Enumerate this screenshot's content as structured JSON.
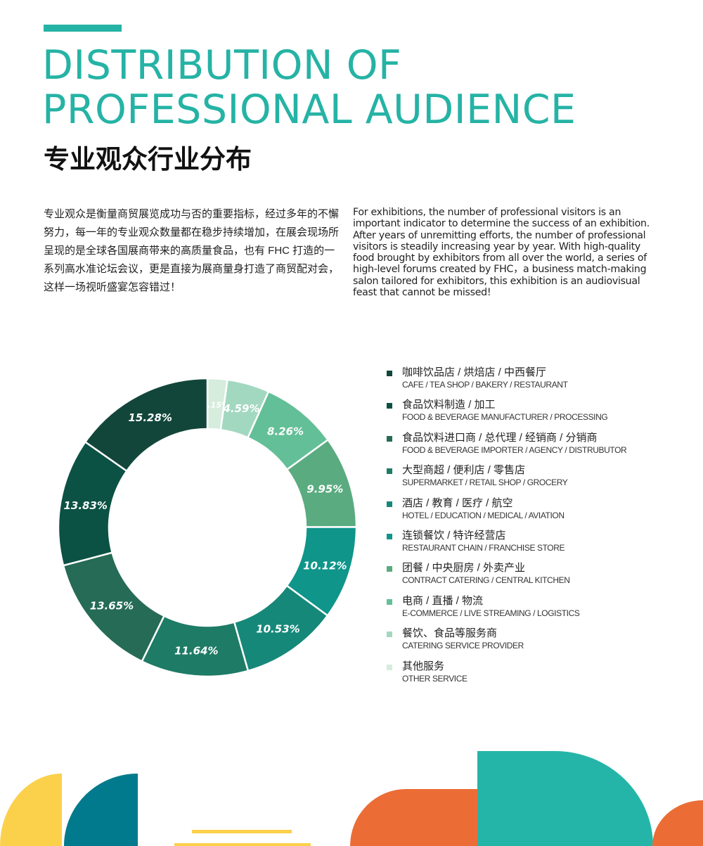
{
  "header": {
    "title_lines": [
      "DISTRIBUTION OF",
      "PROFESSIONAL AUDIENCE"
    ],
    "subtitle_cn": "专业观众行业分布",
    "accent_color": "#25b3a5"
  },
  "intro": {
    "cn": "专业观众是衡量商贸展览成功与否的重要指标，经过多年的不懈努力，每一年的专业观众数量都在稳步持续增加，在展会现场所呈现的是全球各国展商带来的高质量食品，也有 FHC 打造的一系列高水准论坛会议，更是直接为展商量身打造了商贸配对会，这样一场视听盛宴怎容错过！",
    "en": "For exhibitions, the number of professional visitors is an important indicator to determine the success of an exhibition. After years of unremitting efforts, the number of professional visitors is steadily increasing year by year. With high-quality food brought by exhibitors from all over the world, a series of high-level forums created by FHC，a business match-making salon tailored for exhibitors, this exhibition is an audiovisual feast that cannot be missed!"
  },
  "chart_data": {
    "type": "pie",
    "donut": true,
    "unit": "%",
    "legend_position": "right",
    "categories": [
      {
        "cn": "咖啡饮品店 / 烘焙店 / 中西餐厅",
        "en": "CAFE / TEA SHOP / BAKERY / RESTAURANT",
        "value": 15.28,
        "label": "15.28%",
        "color": "#12463a"
      },
      {
        "cn": "食品饮料制造 / 加工",
        "en": "FOOD & BEVERAGE MANUFACTURER / PROCESSING",
        "value": 13.83,
        "label": "13.83%",
        "color": "#0c5244"
      },
      {
        "cn": "食品饮料进口商 / 总代理 / 经销商 / 分销商",
        "en": "FOOD & BEVERAGE IMPORTER / AGENCY / DISTRUBUTOR",
        "value": 13.65,
        "label": "13.65%",
        "color": "#256b55"
      },
      {
        "cn": "大型商超 / 便利店 / 零售店",
        "en": "SUPERMARKET / RETAIL SHOP / GROCERY",
        "value": 11.64,
        "label": "11.64%",
        "color": "#1e7b66"
      },
      {
        "cn": "酒店 / 教育 / 医疗 / 航空",
        "en": "HOTEL / EDUCATION / MEDICAL / AVIATION",
        "value": 10.53,
        "label": "10.53%",
        "color": "#168879"
      },
      {
        "cn": "连锁餐饮 / 特许经营店",
        "en": "RESTAURANT CHAIN / FRANCHISE STORE",
        "value": 10.12,
        "label": "10.12%",
        "color": "#0f958a"
      },
      {
        "cn": "团餐 / 中央厨房 / 外卖产业",
        "en": "CONTRACT CATERING / CENTRAL KITCHEN",
        "value": 9.95,
        "label": "9.95%",
        "color": "#5aab80"
      },
      {
        "cn": "电商 / 直播 / 物流",
        "en": "E-COMMERCE / LIVE STREAMING / LOGISTICS",
        "value": 8.26,
        "label": "8.26%",
        "color": "#63bf97"
      },
      {
        "cn": "餐饮、食品等服务商",
        "en": "CATERING SERVICE PROVIDER",
        "value": 4.59,
        "label": "4.59%",
        "color": "#a3d8c0"
      },
      {
        "cn": "其他服务",
        "en": "OTHER SERVICE",
        "value": 2.15,
        "label": "2.15%",
        "color": "#d6ecdd"
      }
    ]
  },
  "decor_colors": {
    "yellow": "#fbd14b",
    "blue": "#007a8c",
    "orange": "#eb6d35",
    "teal": "#25b5a8"
  }
}
